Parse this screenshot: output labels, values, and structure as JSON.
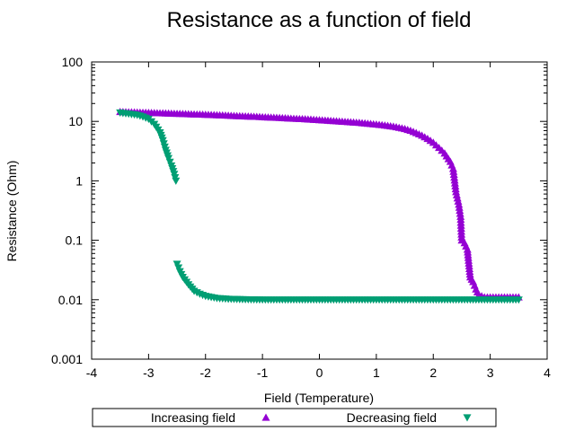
{
  "chart_data": {
    "type": "scatter",
    "title": "Resistance as a function of field",
    "xlabel": "Field (Temperature)",
    "ylabel": "Resistance (Ohm)",
    "xlim": [
      -4,
      4
    ],
    "ylim": [
      0.001,
      100
    ],
    "yscale": "log",
    "x_ticks": [
      "-4",
      "-3",
      "-2",
      "-1",
      "0",
      "1",
      "2",
      "3",
      "4"
    ],
    "y_ticks": [
      "0.001",
      "0.01",
      "0.1",
      "1",
      "10",
      "100"
    ],
    "grid": false,
    "legend_position": "bottom",
    "series": [
      {
        "name": "Increasing field",
        "marker": "triangle-up",
        "color": "#9400d3",
        "points": [
          [
            -3.5,
            14.5
          ],
          [
            -3.3,
            14.3
          ],
          [
            -3.1,
            14.1
          ],
          [
            -2.9,
            13.9
          ],
          [
            -2.7,
            13.7
          ],
          [
            -2.5,
            13.5
          ],
          [
            -2.3,
            13.3
          ],
          [
            -2.1,
            13.1
          ],
          [
            -1.9,
            12.9
          ],
          [
            -1.7,
            12.7
          ],
          [
            -1.5,
            12.4
          ],
          [
            -1.3,
            12.2
          ],
          [
            -1.1,
            12.0
          ],
          [
            -0.9,
            11.7
          ],
          [
            -0.7,
            11.5
          ],
          [
            -0.5,
            11.2
          ],
          [
            -0.3,
            11.0
          ],
          [
            -0.1,
            10.7
          ],
          [
            0.1,
            10.4
          ],
          [
            0.3,
            10.1
          ],
          [
            0.5,
            9.8
          ],
          [
            0.7,
            9.5
          ],
          [
            0.9,
            9.1
          ],
          [
            1.1,
            8.7
          ],
          [
            1.3,
            8.2
          ],
          [
            1.5,
            7.5
          ],
          [
            1.6,
            7.0
          ],
          [
            1.7,
            6.4
          ],
          [
            1.8,
            5.8
          ],
          [
            1.9,
            5.1
          ],
          [
            2.0,
            4.4
          ],
          [
            2.1,
            3.6
          ],
          [
            2.2,
            2.9
          ],
          [
            2.3,
            2.1
          ],
          [
            2.35,
            1.6
          ],
          [
            2.4,
            0.65
          ],
          [
            2.45,
            0.4
          ],
          [
            2.48,
            0.25
          ],
          [
            2.5,
            0.1
          ],
          [
            2.55,
            0.09
          ],
          [
            2.6,
            0.07
          ],
          [
            2.65,
            0.024
          ],
          [
            2.7,
            0.02
          ],
          [
            2.75,
            0.015
          ],
          [
            2.8,
            0.012
          ],
          [
            2.9,
            0.011
          ],
          [
            3.0,
            0.011
          ],
          [
            3.2,
            0.011
          ],
          [
            3.4,
            0.011
          ],
          [
            3.5,
            0.011
          ]
        ]
      },
      {
        "name": "Decreasing field",
        "marker": "triangle-down",
        "color": "#009e73",
        "points": [
          [
            3.5,
            0.01
          ],
          [
            3.2,
            0.01
          ],
          [
            2.9,
            0.01
          ],
          [
            2.6,
            0.01
          ],
          [
            2.3,
            0.01
          ],
          [
            2.0,
            0.01
          ],
          [
            1.7,
            0.01
          ],
          [
            1.4,
            0.01
          ],
          [
            1.1,
            0.01
          ],
          [
            0.8,
            0.01
          ],
          [
            0.5,
            0.01
          ],
          [
            0.2,
            0.01
          ],
          [
            -0.1,
            0.01
          ],
          [
            -0.4,
            0.01
          ],
          [
            -0.7,
            0.01
          ],
          [
            -1.0,
            0.01
          ],
          [
            -1.3,
            0.0101
          ],
          [
            -1.6,
            0.0103
          ],
          [
            -1.8,
            0.0106
          ],
          [
            -2.0,
            0.0115
          ],
          [
            -2.1,
            0.0125
          ],
          [
            -2.2,
            0.014
          ],
          [
            -2.3,
            0.018
          ],
          [
            -2.4,
            0.024
          ],
          [
            -2.45,
            0.03
          ],
          [
            -2.5,
            0.04
          ],
          [
            -2.52,
            1.0
          ],
          [
            -2.55,
            1.3
          ],
          [
            -2.6,
            1.8
          ],
          [
            -2.65,
            2.4
          ],
          [
            -2.7,
            3.3
          ],
          [
            -2.75,
            4.8
          ],
          [
            -2.8,
            6.5
          ],
          [
            -2.9,
            9.0
          ],
          [
            -3.0,
            11.0
          ],
          [
            -3.1,
            12.0
          ],
          [
            -3.2,
            12.8
          ],
          [
            -3.3,
            13.2
          ],
          [
            -3.4,
            13.6
          ],
          [
            -3.5,
            14.0
          ]
        ]
      }
    ]
  }
}
